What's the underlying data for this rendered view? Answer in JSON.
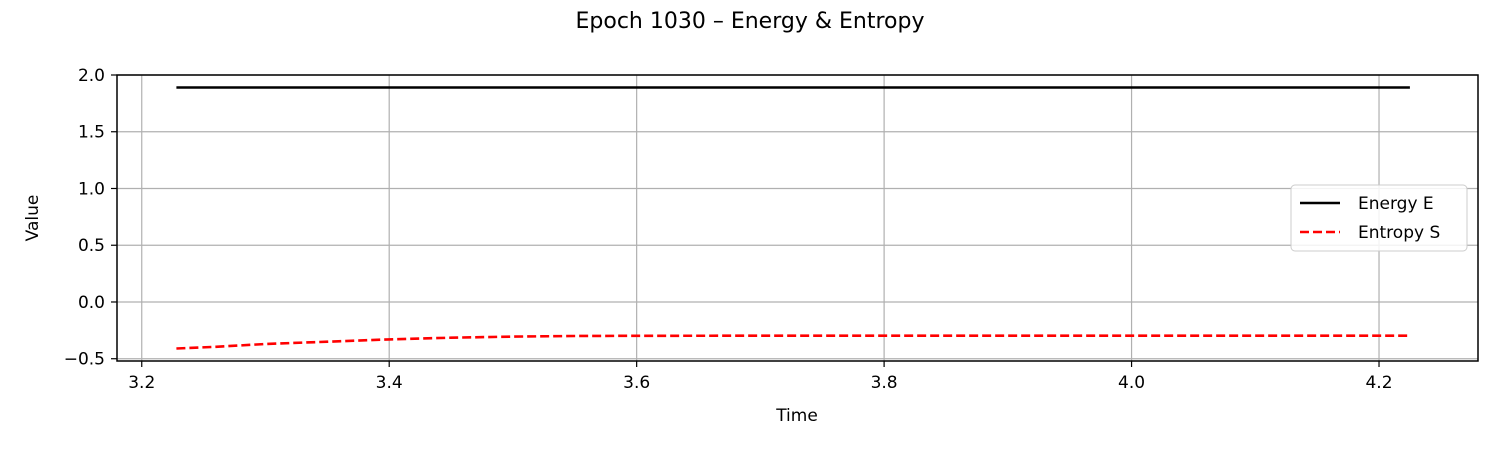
{
  "chart_data": {
    "type": "line",
    "title": "Epoch 1030 – Energy & Entropy",
    "xlabel": "Time",
    "ylabel": "Value",
    "xlim": [
      3.18,
      4.28
    ],
    "ylim": [
      -0.52,
      2.0
    ],
    "xticks": [
      3.2,
      3.4,
      3.6,
      3.8,
      4.0,
      4.2
    ],
    "xtick_labels": [
      "3.2",
      "3.4",
      "3.6",
      "3.8",
      "4.0",
      "4.2"
    ],
    "yticks": [
      -0.5,
      0.0,
      0.5,
      1.0,
      1.5,
      2.0
    ],
    "ytick_labels": [
      "−0.5",
      "0.0",
      "0.5",
      "1.0",
      "1.5",
      "2.0"
    ],
    "grid": true,
    "legend_position": "center-right",
    "series": [
      {
        "name": "Energy E",
        "color": "#000000",
        "style": "solid",
        "x": [
          3.228,
          3.4,
          3.6,
          3.8,
          4.0,
          4.225
        ],
        "y": [
          1.89,
          1.89,
          1.89,
          1.89,
          1.89,
          1.89
        ]
      },
      {
        "name": "Entropy S",
        "color": "#ff0000",
        "style": "dashed",
        "x": [
          3.228,
          3.26,
          3.3,
          3.35,
          3.4,
          3.45,
          3.5,
          3.55,
          3.6,
          3.7,
          3.8,
          3.9,
          4.0,
          4.1,
          4.225
        ],
        "y": [
          -0.41,
          -0.395,
          -0.37,
          -0.35,
          -0.33,
          -0.315,
          -0.305,
          -0.3,
          -0.298,
          -0.297,
          -0.297,
          -0.297,
          -0.297,
          -0.297,
          -0.297
        ]
      }
    ]
  }
}
